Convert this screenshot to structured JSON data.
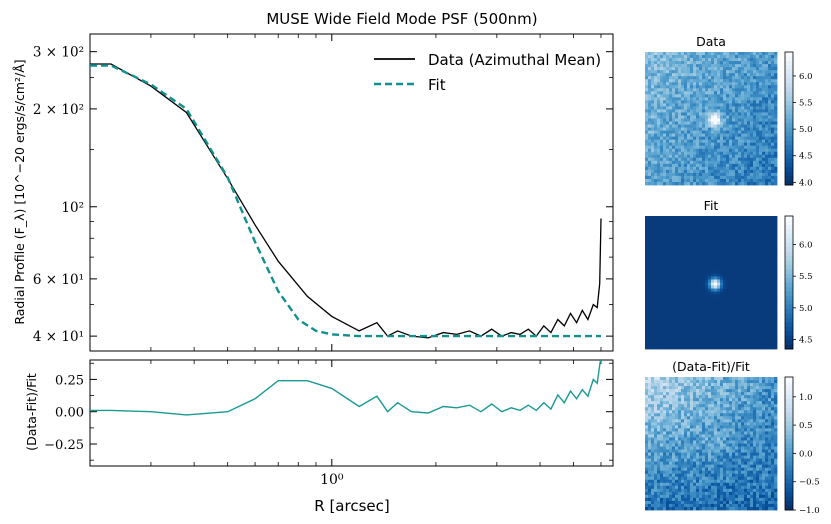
{
  "title": "MUSE Wide Field Mode PSF (500nm)",
  "colors": {
    "data_line": "#000000",
    "fit_line": "#12908e",
    "resid_line": "#1a9a94",
    "cmap_dark": "#08306b",
    "cmap_mid": "#2171b5",
    "cmap_light": "#deebf7"
  },
  "chart_data": [
    {
      "type": "line",
      "panel": "main",
      "xscale": "log",
      "yscale": "log",
      "xlim": [
        0.2,
        6.5
      ],
      "ylim": [
        36,
        340
      ],
      "xlabel": "",
      "ylabel": "Radial Profile (F_λ) [10^−20 ergs/s/cm²/Å]",
      "yticks": [
        {
          "value": 300,
          "label": "3 × 10²"
        },
        {
          "value": 200,
          "label": "2 × 10²"
        },
        {
          "value": 100,
          "label": "10²"
        },
        {
          "value": 60,
          "label": "6 × 10¹"
        },
        {
          "value": 40,
          "label": "4 × 10¹"
        }
      ],
      "legend": {
        "position": "top-right",
        "entries": [
          "Data (Azimuthal Mean)",
          "Fit"
        ]
      },
      "series": [
        {
          "name": "Data (Azimuthal Mean)",
          "style": "solid",
          "x": [
            0.2,
            0.23,
            0.3,
            0.38,
            0.5,
            0.6,
            0.7,
            0.85,
            1.0,
            1.2,
            1.35,
            1.45,
            1.55,
            1.7,
            1.9,
            2.1,
            2.3,
            2.5,
            2.7,
            2.9,
            3.1,
            3.3,
            3.5,
            3.7,
            3.9,
            4.1,
            4.3,
            4.5,
            4.7,
            4.9,
            5.1,
            5.3,
            5.5,
            5.7,
            5.85,
            5.95,
            6.0
          ],
          "y": [
            275,
            275,
            235,
            195,
            122,
            88,
            68,
            53,
            46,
            41.5,
            44,
            40,
            41.5,
            40,
            39.5,
            41,
            40.5,
            41.5,
            40,
            42,
            40,
            41,
            40.5,
            42,
            40,
            43,
            41,
            45,
            43,
            47,
            44,
            48,
            45,
            50,
            49,
            58,
            92
          ]
        },
        {
          "name": "Fit",
          "style": "dashed",
          "x": [
            0.2,
            0.23,
            0.3,
            0.38,
            0.5,
            0.6,
            0.7,
            0.8,
            0.9,
            1.0,
            1.2,
            1.5,
            2.0,
            3.0,
            4.0,
            5.0,
            6.0
          ],
          "y": [
            272,
            272,
            238,
            200,
            123,
            78,
            55,
            45,
            41.5,
            40.5,
            40,
            40,
            40,
            40,
            40,
            40,
            40
          ]
        }
      ]
    },
    {
      "type": "line",
      "panel": "residual",
      "xscale": "log",
      "xlim": [
        0.2,
        6.5
      ],
      "ylim": [
        -0.42,
        0.4
      ],
      "xlabel": "R [arcsec]",
      "ylabel": "(Data-Fit)/Fit",
      "xticks": [
        {
          "value": 1.0,
          "label": "10⁰"
        }
      ],
      "yticks": [
        {
          "value": 0.25,
          "label": "0.25"
        },
        {
          "value": 0.0,
          "label": "0.00"
        },
        {
          "value": -0.25,
          "label": "−0.25"
        }
      ],
      "series": [
        {
          "name": "(Data-Fit)/Fit",
          "x": [
            0.2,
            0.23,
            0.3,
            0.38,
            0.5,
            0.6,
            0.7,
            0.85,
            1.0,
            1.2,
            1.35,
            1.45,
            1.55,
            1.7,
            1.9,
            2.1,
            2.3,
            2.5,
            2.7,
            2.9,
            3.1,
            3.3,
            3.5,
            3.7,
            3.9,
            4.1,
            4.3,
            4.5,
            4.7,
            4.9,
            5.1,
            5.3,
            5.5,
            5.7,
            5.85,
            5.95,
            6.0
          ],
          "y": [
            0.01,
            0.01,
            0.0,
            -0.025,
            0.0,
            0.1,
            0.24,
            0.24,
            0.18,
            0.04,
            0.12,
            0.0,
            0.07,
            0.0,
            -0.01,
            0.04,
            0.03,
            0.05,
            0.0,
            0.06,
            0.0,
            0.03,
            0.01,
            0.05,
            0.01,
            0.07,
            0.02,
            0.13,
            0.07,
            0.16,
            0.1,
            0.17,
            0.12,
            0.25,
            0.22,
            0.36,
            0.42
          ]
        }
      ]
    },
    {
      "type": "heatmap",
      "title": "Data",
      "colorbar_ticks": [
        {
          "value": 6.0,
          "label": "6.0"
        },
        {
          "value": 5.5,
          "label": "5.5"
        },
        {
          "value": 5.0,
          "label": "5.0"
        },
        {
          "value": 4.5,
          "label": "4.5"
        },
        {
          "value": 4.0,
          "label": "4.0"
        }
      ],
      "vmin": 3.95,
      "vmax": 6.45
    },
    {
      "type": "heatmap",
      "title": "Fit",
      "colorbar_ticks": [
        {
          "value": 6.0,
          "label": "6.0"
        },
        {
          "value": 5.5,
          "label": "5.5"
        },
        {
          "value": 5.0,
          "label": "5.0"
        },
        {
          "value": 4.5,
          "label": "4.5"
        }
      ],
      "vmin": 4.35,
      "vmax": 6.45
    },
    {
      "type": "heatmap",
      "title": "(Data-Fit)/Fit",
      "colorbar_ticks": [
        {
          "value": 1.0,
          "label": "1.0"
        },
        {
          "value": 0.5,
          "label": "0.5"
        },
        {
          "value": 0.0,
          "label": "0.0"
        },
        {
          "value": -0.5,
          "label": "−0.5"
        },
        {
          "value": -1.0,
          "label": "−1.0"
        }
      ],
      "vmin": -1.0,
      "vmax": 1.35
    }
  ]
}
